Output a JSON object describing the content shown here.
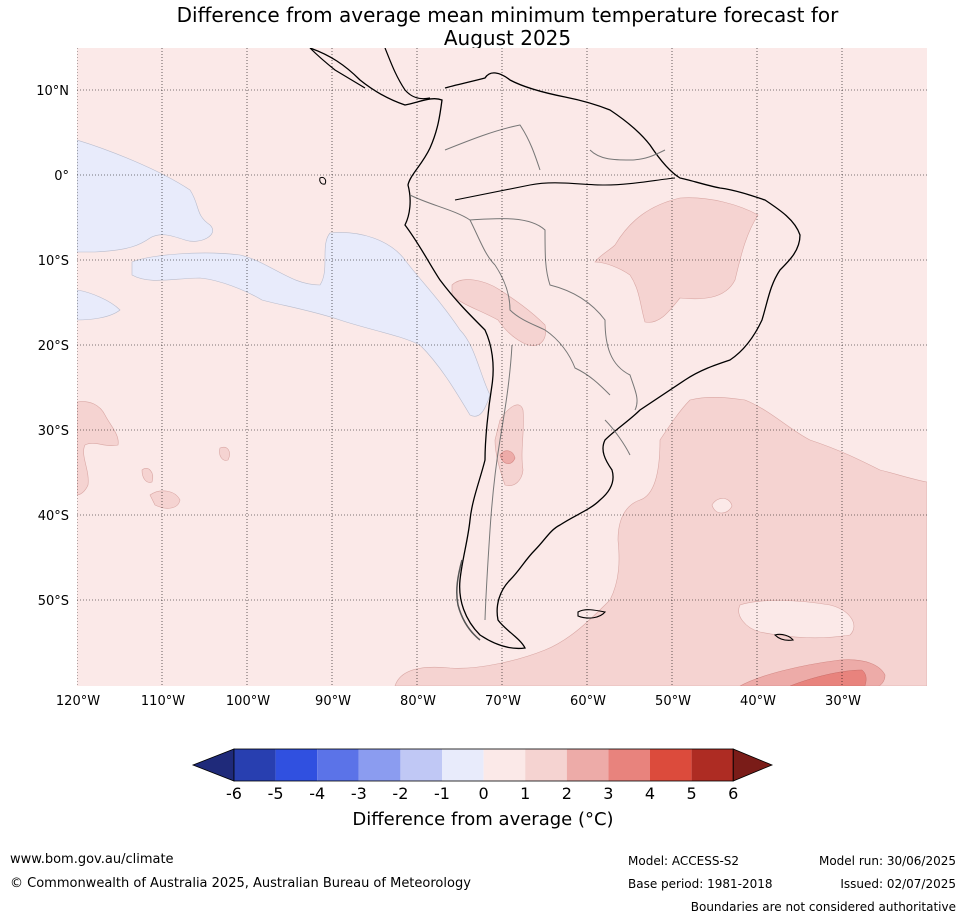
{
  "title_line1": "Difference from average mean minimum temperature forecast for",
  "title_line2": "August 2025",
  "map": {
    "lon_ticks": [
      "120°W",
      "110°W",
      "100°W",
      "90°W",
      "80°W",
      "70°W",
      "60°W",
      "50°W",
      "40°W",
      "30°W"
    ],
    "lat_ticks": [
      "10°N",
      "0°",
      "10°S",
      "20°S",
      "30°S",
      "40°S",
      "50°S"
    ],
    "extent": {
      "lon": [
        -120,
        -20
      ],
      "lat": [
        -60,
        15
      ]
    },
    "grid": "dotted"
  },
  "colorbar": {
    "title": "Difference from average (°C)",
    "labels": [
      "-6",
      "-5",
      "-4",
      "-3",
      "-2",
      "-1",
      "0",
      "1",
      "2",
      "3",
      "4",
      "5",
      "6"
    ],
    "colors": [
      "#1f2a7a",
      "#283fb0",
      "#3050e0",
      "#5b73e8",
      "#8b9cf0",
      "#c0c8f5",
      "#e8ebfb",
      "#fbe9e8",
      "#f5d3d1",
      "#edaba8",
      "#e8837d",
      "#dc4b3c",
      "#ae2c23",
      "#7a1c18"
    ]
  },
  "footer": {
    "website": "www.bom.gov.au/climate",
    "copyright": "© Commonwealth of Australia 2025, Australian Bureau of Meteorology",
    "model": "Model: ACCESS-S2",
    "base_period": "Base period: 1981-2018",
    "model_run": "Model run: 30/06/2025",
    "issued": "Issued: 02/07/2025",
    "disclaimer": "Boundaries are not considered authoritative"
  }
}
